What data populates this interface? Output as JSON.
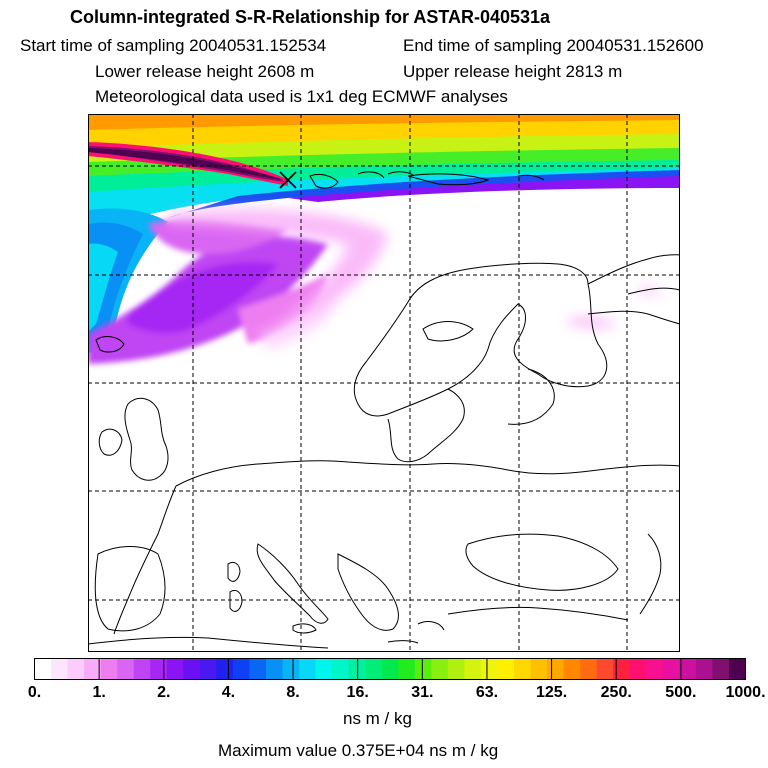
{
  "header": {
    "title": "Column-integrated S-R-Relationship for ASTAR-040531a",
    "start_time": "Start time of sampling 20040531.152534",
    "end_time": "End time of sampling 20040531.152600",
    "lower_height": "Lower release height 2608 m",
    "upper_height": "Upper release height 2813 m",
    "met_data": "Meteorological data used is 1x1 deg ECMWF analyses"
  },
  "colorbar": {
    "ticks": [
      "0.",
      "1.",
      "2.",
      "4.",
      "8.",
      "16.",
      "31.",
      "63.",
      "125.",
      "250.",
      "500.",
      "1000."
    ],
    "colors": [
      "#ffffff",
      "#fde6fd",
      "#fcccfc",
      "#f9aaf8",
      "#ee7ef0",
      "#d966f2",
      "#c044f3",
      "#a626f3",
      "#8a14f3",
      "#6a10f3",
      "#4a18f0",
      "#2020ef",
      "#1040f5",
      "#0a66f5",
      "#0890f5",
      "#08b4f5",
      "#06d8f5",
      "#00f5ec",
      "#00f5c8",
      "#00f0a0",
      "#00ee78",
      "#00ea50",
      "#20ec20",
      "#58ee10",
      "#88f010",
      "#b0f010",
      "#d4f410",
      "#eef410",
      "#fff000",
      "#ffd800",
      "#ffc000",
      "#ffa800",
      "#ff8800",
      "#ff6c10",
      "#ff4830",
      "#ff2040",
      "#ff1070",
      "#f81090",
      "#e810a0",
      "#cc10a0",
      "#aa1090",
      "#801070",
      "#500050"
    ],
    "unit": "ns m / kg",
    "max_value": "Maximum value  0.375E+04 ns m / kg"
  }
}
